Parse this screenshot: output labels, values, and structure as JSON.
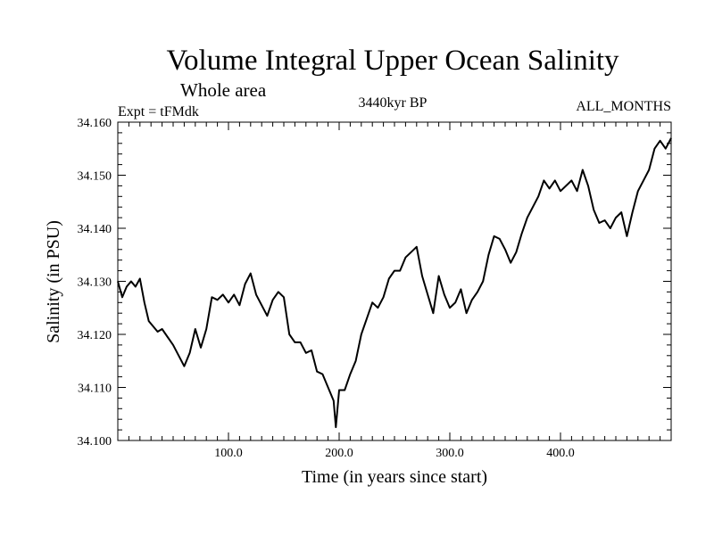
{
  "chart_data": {
    "type": "line",
    "title": "Volume Integral Upper Ocean Salinity",
    "subtitle": "Whole area",
    "experiment": "Expt = tFMdk",
    "period": "3440kyr BP",
    "months": "ALL_MONTHS",
    "xlabel": "Time (in years since start)",
    "ylabel": "Salinity (in PSU)",
    "xlim": [
      0,
      500
    ],
    "ylim": [
      34.1,
      34.16
    ],
    "x_ticks": [
      100,
      200,
      300,
      400
    ],
    "x_tick_labels": [
      "100.0",
      "200.0",
      "300.0",
      "400.0"
    ],
    "y_ticks": [
      34.1,
      34.11,
      34.12,
      34.13,
      34.14,
      34.15,
      34.16
    ],
    "y_tick_labels": [
      "34.100",
      "34.110",
      "34.120",
      "34.130",
      "34.140",
      "34.150",
      "34.160"
    ],
    "grid": false,
    "series": [
      {
        "name": "salinity",
        "x": [
          0,
          4,
          8,
          12,
          16,
          20,
          24,
          28,
          32,
          36,
          40,
          45,
          50,
          55,
          60,
          65,
          70,
          75,
          80,
          85,
          90,
          95,
          100,
          105,
          110,
          115,
          120,
          125,
          130,
          135,
          140,
          145,
          150,
          155,
          160,
          165,
          170,
          175,
          180,
          185,
          190,
          195,
          197,
          200,
          205,
          210,
          215,
          220,
          225,
          230,
          235,
          240,
          245,
          250,
          255,
          260,
          265,
          270,
          275,
          280,
          285,
          290,
          295,
          300,
          305,
          310,
          315,
          320,
          325,
          330,
          335,
          340,
          345,
          350,
          355,
          360,
          365,
          370,
          375,
          380,
          385,
          390,
          395,
          400,
          405,
          410,
          415,
          420,
          425,
          430,
          435,
          440,
          445,
          450,
          455,
          460,
          465,
          470,
          475,
          480,
          485,
          490,
          495,
          500
        ],
        "values": [
          34.13,
          34.127,
          34.129,
          34.13,
          34.129,
          34.1305,
          34.126,
          34.1225,
          34.1215,
          34.1205,
          34.121,
          34.1195,
          34.118,
          34.116,
          34.114,
          34.1165,
          34.121,
          34.1175,
          34.121,
          34.127,
          34.1265,
          34.1275,
          34.126,
          34.1275,
          34.1255,
          34.1295,
          34.1315,
          34.1275,
          34.1255,
          34.1235,
          34.1265,
          34.128,
          34.127,
          34.12,
          34.1185,
          34.1185,
          34.1165,
          34.117,
          34.113,
          34.1125,
          34.11,
          34.1075,
          34.1025,
          34.1095,
          34.1095,
          34.1125,
          34.115,
          34.12,
          34.123,
          34.126,
          34.125,
          34.127,
          34.1305,
          34.132,
          34.132,
          34.1345,
          34.1355,
          34.1365,
          34.131,
          34.1275,
          34.124,
          34.131,
          34.1275,
          34.125,
          34.126,
          34.1285,
          34.124,
          34.1265,
          34.128,
          34.13,
          34.135,
          34.1385,
          34.138,
          34.136,
          34.1335,
          34.1355,
          34.139,
          34.142,
          34.144,
          34.146,
          34.149,
          34.1475,
          34.149,
          34.147,
          34.148,
          34.149,
          34.147,
          34.151,
          34.148,
          34.1435,
          34.141,
          34.1415,
          34.14,
          34.142,
          34.143,
          34.1385,
          34.143,
          34.147,
          34.149,
          34.151,
          34.155,
          34.1565,
          34.155,
          34.157
        ]
      }
    ]
  }
}
